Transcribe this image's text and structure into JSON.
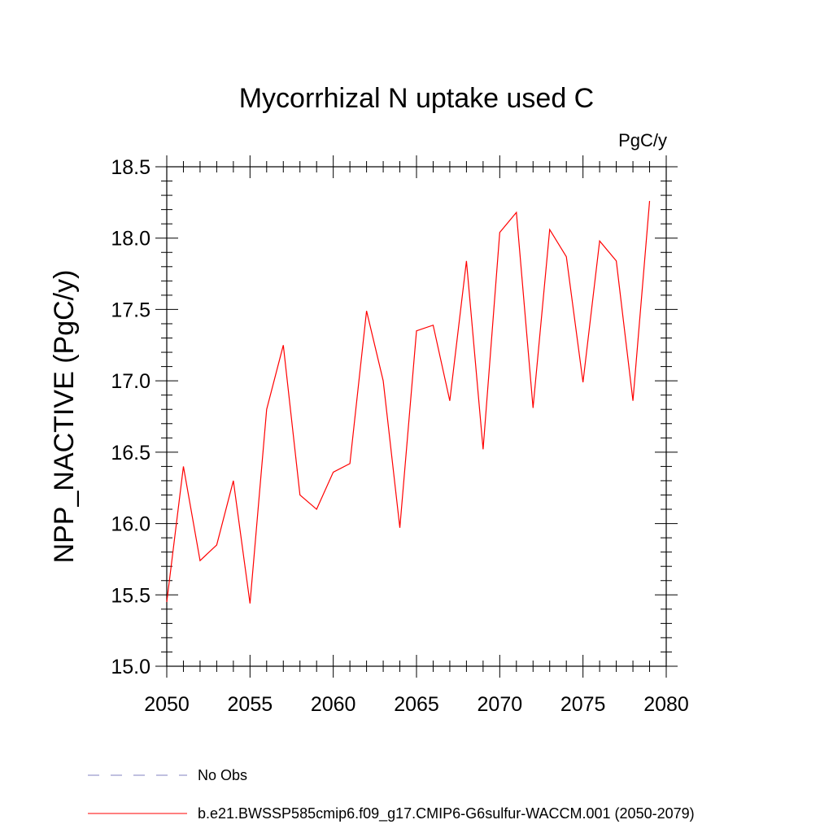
{
  "chart_data": {
    "type": "line",
    "title": "Mycorrhizal N uptake used C",
    "units": "PgC/y",
    "ylabel": "NPP_NACTIVE  (PgC/y)",
    "xlabel": "",
    "xlim": [
      2050,
      2080
    ],
    "ylim": [
      15.0,
      18.5
    ],
    "x_ticks": [
      2050,
      2055,
      2060,
      2065,
      2070,
      2075,
      2080
    ],
    "y_ticks": [
      15.0,
      15.5,
      16.0,
      16.5,
      17.0,
      17.5,
      18.0,
      18.5
    ],
    "x_tick_labels": [
      "2050",
      "2055",
      "2060",
      "2065",
      "2070",
      "2075",
      "2080"
    ],
    "y_tick_labels": [
      "15.0",
      "15.5",
      "16.0",
      "16.5",
      "17.0",
      "17.5",
      "18.0",
      "18.5"
    ],
    "grid": false,
    "series": [
      {
        "name": "b.e21.BWSSP585cmip6.f09_g17.CMIP6-G6sulfur-WACCM.001 (2050-2079)",
        "color": "#ff0000",
        "x": [
          2050,
          2051,
          2052,
          2053,
          2054,
          2055,
          2056,
          2057,
          2058,
          2059,
          2060,
          2061,
          2062,
          2063,
          2064,
          2065,
          2066,
          2067,
          2068,
          2069,
          2070,
          2071,
          2072,
          2073,
          2074,
          2075,
          2076,
          2077,
          2078,
          2079
        ],
        "values": [
          15.45,
          16.4,
          15.74,
          15.85,
          16.3,
          15.44,
          16.8,
          17.25,
          16.2,
          16.1,
          16.36,
          16.42,
          17.49,
          17.0,
          15.97,
          17.35,
          17.39,
          16.86,
          17.84,
          16.52,
          18.04,
          18.18,
          16.81,
          18.06,
          17.87,
          16.99,
          17.98,
          17.84,
          16.86,
          18.26
        ]
      }
    ],
    "legend": [
      {
        "label": "No Obs",
        "style": "dashed",
        "color": "#8080c0"
      },
      {
        "label": "b.e21.BWSSP585cmip6.f09_g17.CMIP6-G6sulfur-WACCM.001 (2050-2079)",
        "style": "solid",
        "color": "#ff0000"
      }
    ],
    "legend_placement": "bottom-left"
  }
}
